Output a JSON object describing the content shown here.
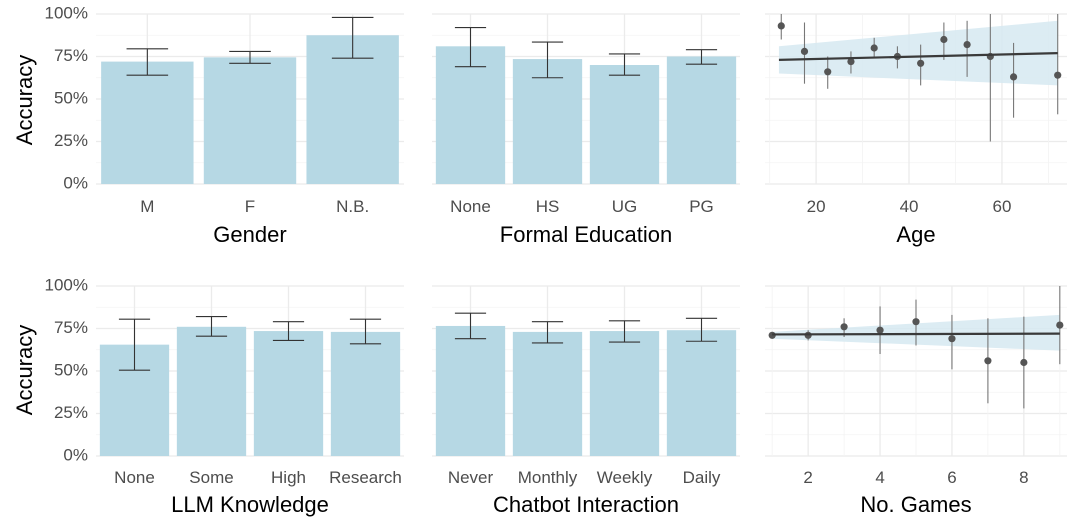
{
  "figure": {
    "ylabel": "Accuracy",
    "y_ticks": [
      "0%",
      "25%",
      "50%",
      "75%",
      "100%"
    ],
    "colors": {
      "bar": "#b6d8e4",
      "errorbar": "#333333",
      "grid": "#ebebeb",
      "band": "#d6e9f1",
      "point": "#555555",
      "trend": "#3a3a3a"
    }
  },
  "chart_data": [
    {
      "id": "gender",
      "type": "bar",
      "xlabel": "Gender",
      "categories": [
        "M",
        "F",
        "N.B."
      ],
      "values": [
        0.72,
        0.745,
        0.875
      ],
      "err_low": [
        0.64,
        0.71,
        0.74
      ],
      "err_high": [
        0.795,
        0.78,
        0.98
      ],
      "ylim": [
        0,
        1
      ]
    },
    {
      "id": "education",
      "type": "bar",
      "xlabel": "Formal Education",
      "categories": [
        "None",
        "HS",
        "UG",
        "PG"
      ],
      "values": [
        0.81,
        0.735,
        0.7,
        0.75
      ],
      "err_low": [
        0.69,
        0.625,
        0.64,
        0.705
      ],
      "err_high": [
        0.92,
        0.835,
        0.765,
        0.79
      ],
      "ylim": [
        0,
        1
      ]
    },
    {
      "id": "age",
      "type": "scatter",
      "xlabel": "Age",
      "x_ticks": [
        20,
        40,
        60
      ],
      "xlim": [
        9,
        74
      ],
      "ylim": [
        0,
        1
      ],
      "points": [
        {
          "x": 12.5,
          "y": 0.93,
          "lo": 0.85,
          "hi": 1.0
        },
        {
          "x": 17.5,
          "y": 0.78,
          "lo": 0.59,
          "hi": 0.95
        },
        {
          "x": 22.5,
          "y": 0.66,
          "lo": 0.56,
          "hi": 0.75
        },
        {
          "x": 27.5,
          "y": 0.72,
          "lo": 0.65,
          "hi": 0.78
        },
        {
          "x": 32.5,
          "y": 0.8,
          "lo": 0.74,
          "hi": 0.86
        },
        {
          "x": 37.5,
          "y": 0.75,
          "lo": 0.68,
          "hi": 0.81
        },
        {
          "x": 42.5,
          "y": 0.71,
          "lo": 0.58,
          "hi": 0.82
        },
        {
          "x": 47.5,
          "y": 0.85,
          "lo": 0.73,
          "hi": 0.95
        },
        {
          "x": 52.5,
          "y": 0.82,
          "lo": 0.63,
          "hi": 0.96
        },
        {
          "x": 57.5,
          "y": 0.75,
          "lo": 0.25,
          "hi": 1.0
        },
        {
          "x": 62.5,
          "y": 0.63,
          "lo": 0.39,
          "hi": 0.83
        },
        {
          "x": 72.0,
          "y": 0.64,
          "lo": 0.41,
          "hi": 1.0
        }
      ],
      "trend": {
        "x": [
          12,
          72
        ],
        "y": [
          0.73,
          0.77
        ]
      },
      "band": {
        "upper_start": 0.81,
        "lower_start": 0.65,
        "upper_end": 0.96,
        "lower_end": 0.58
      }
    },
    {
      "id": "llm_knowledge",
      "type": "bar",
      "xlabel": "LLM Knowledge",
      "categories": [
        "None",
        "Some",
        "High",
        "Research"
      ],
      "values": [
        0.655,
        0.76,
        0.735,
        0.73
      ],
      "err_low": [
        0.505,
        0.705,
        0.68,
        0.66
      ],
      "err_high": [
        0.805,
        0.82,
        0.79,
        0.805
      ],
      "ylim": [
        0,
        1
      ]
    },
    {
      "id": "chatbot_interaction",
      "type": "bar",
      "xlabel": "Chatbot Interaction",
      "categories": [
        "Never",
        "Monthly",
        "Weekly",
        "Daily"
      ],
      "values": [
        0.765,
        0.73,
        0.735,
        0.74
      ],
      "err_low": [
        0.69,
        0.665,
        0.67,
        0.675
      ],
      "err_high": [
        0.84,
        0.79,
        0.795,
        0.81
      ],
      "ylim": [
        0,
        1
      ]
    },
    {
      "id": "games",
      "type": "scatter",
      "xlabel": "No. Games",
      "x_ticks": [
        2,
        4,
        6,
        8
      ],
      "xlim": [
        0.8,
        9.2
      ],
      "ylim": [
        0,
        1
      ],
      "points": [
        {
          "x": 1,
          "y": 0.71,
          "lo": 0.69,
          "hi": 0.73
        },
        {
          "x": 2,
          "y": 0.71,
          "lo": 0.68,
          "hi": 0.74
        },
        {
          "x": 3,
          "y": 0.76,
          "lo": 0.7,
          "hi": 0.81
        },
        {
          "x": 4,
          "y": 0.74,
          "lo": 0.6,
          "hi": 0.88
        },
        {
          "x": 5,
          "y": 0.79,
          "lo": 0.65,
          "hi": 0.92
        },
        {
          "x": 6,
          "y": 0.69,
          "lo": 0.51,
          "hi": 0.83
        },
        {
          "x": 7,
          "y": 0.56,
          "lo": 0.31,
          "hi": 0.81
        },
        {
          "x": 8,
          "y": 0.55,
          "lo": 0.28,
          "hi": 0.82
        },
        {
          "x": 9,
          "y": 0.77,
          "lo": 0.54,
          "hi": 1.0
        }
      ],
      "trend": {
        "x": [
          1,
          9
        ],
        "y": [
          0.715,
          0.72
        ]
      },
      "band": {
        "upper_start": 0.73,
        "lower_start": 0.69,
        "upper_end": 0.83,
        "lower_end": 0.62
      }
    }
  ]
}
